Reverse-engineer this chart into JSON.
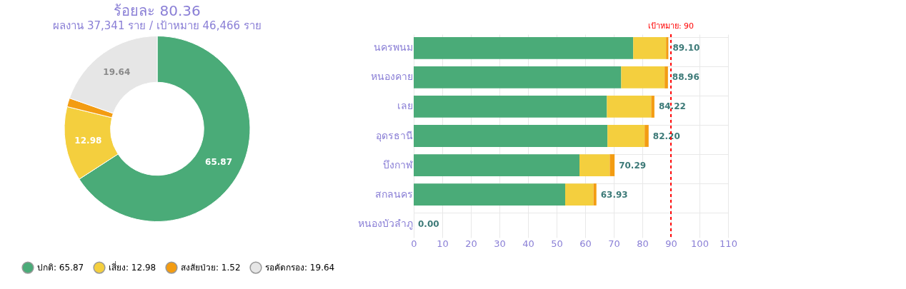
{
  "chart_data": [
    {
      "type": "donut",
      "title": "ร้อยละ 80.36",
      "subtitle": "ผลงาน 37,341 ราย / เป้าหมาย 46,466 ราย",
      "categories": [
        "ปกติ: 65.87",
        "เสี่ยง: 12.98",
        "สงสัยป่วย: 1.52",
        "รอคัดกรอง: 19.64"
      ],
      "values": [
        65.87,
        12.98,
        1.52,
        19.64
      ],
      "colors": [
        "#4aab78",
        "#f4cf3e",
        "#f39c12",
        "#e6e6e6"
      ],
      "value_labels": [
        "65.87",
        "12.98",
        null,
        "19.64"
      ],
      "legend": "bottom"
    },
    {
      "type": "bar",
      "orientation": "horizontal",
      "stacked": true,
      "categories": [
        "นครพนม",
        "หนองคาย",
        "เลย",
        "อุดรธานี",
        "บึงกาฬ",
        "สกลนคร",
        "หนองบัวลำภู"
      ],
      "series": [
        {
          "color": "#4aab78",
          "values": [
            76.8,
            72.6,
            67.6,
            67.8,
            58.0,
            53.0,
            0
          ]
        },
        {
          "color": "#f4cf3e",
          "values": [
            11.5,
            15.2,
            15.5,
            13.0,
            10.6,
            9.9,
            0
          ]
        },
        {
          "color": "#f39c12",
          "values": [
            0.8,
            1.16,
            1.12,
            1.4,
            1.69,
            1.03,
            0
          ]
        }
      ],
      "totals": [
        "89.10",
        "88.96",
        "84.22",
        "82.20",
        "70.29",
        "63.93",
        "0.00"
      ],
      "xlim": [
        0,
        110
      ],
      "xticks": [
        0,
        10,
        20,
        30,
        40,
        50,
        60,
        70,
        80,
        90,
        100,
        110
      ],
      "grid": true,
      "ref_lines": [
        {
          "axis": "x",
          "value": 90,
          "label": "เป้าหมาย: 90",
          "color": "#ff0000",
          "line_style": "dashed"
        }
      ]
    }
  ]
}
